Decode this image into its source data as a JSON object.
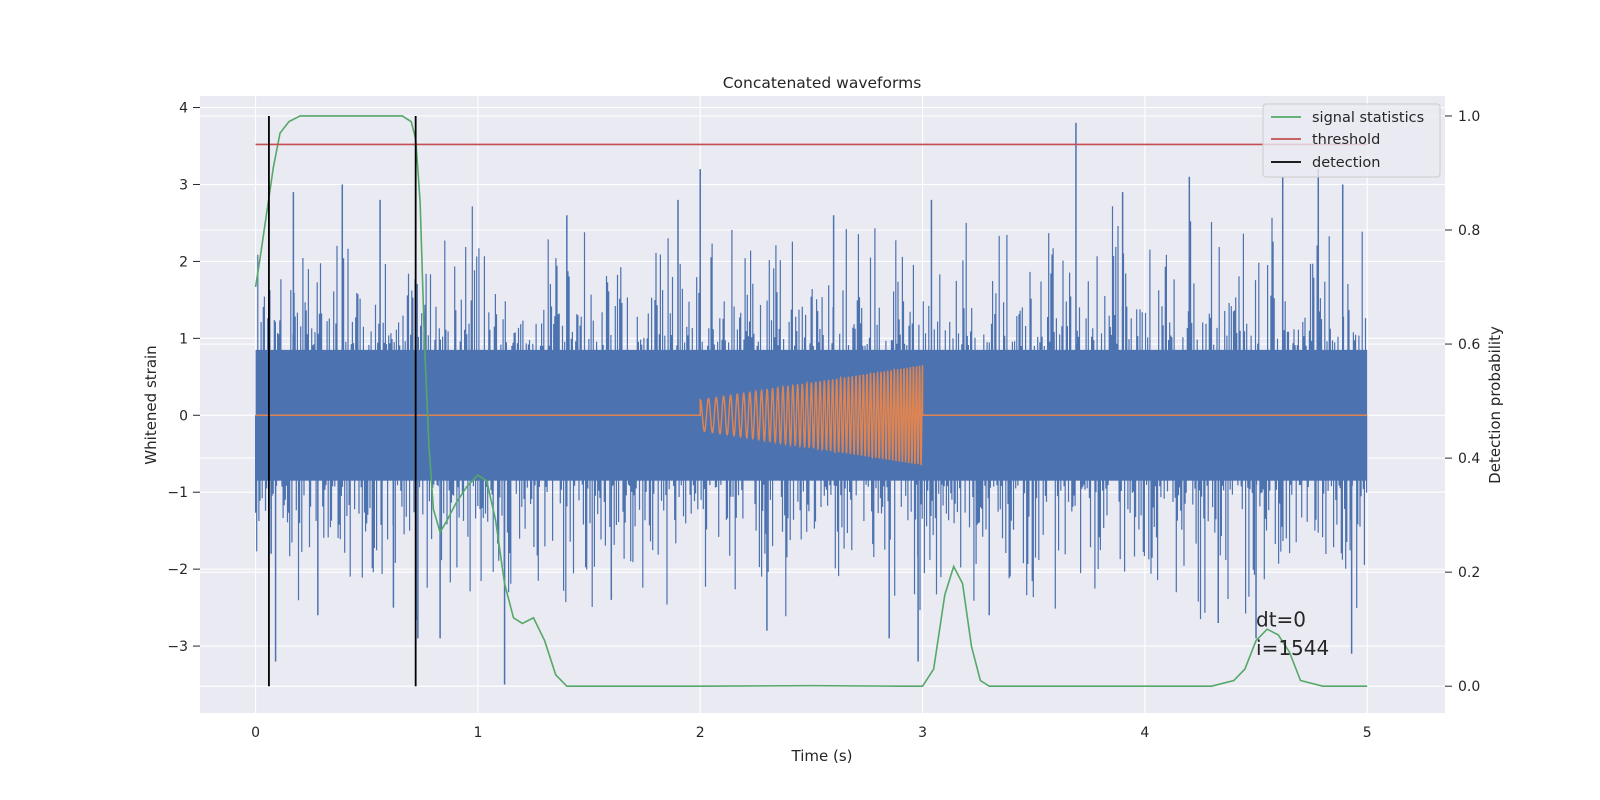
{
  "chart_data": {
    "type": "line",
    "title": "Concatenated waveforms",
    "xlabel": "Time (s)",
    "ylabel": "Whitened strain",
    "y2label": "Detection probability",
    "xlim": [
      -0.25,
      5.35
    ],
    "ylim": [
      -3.87,
      4.15
    ],
    "y2lim": [
      -0.047,
      1.035
    ],
    "xticks": [
      0,
      1,
      2,
      3,
      4,
      5
    ],
    "yticks": [
      -3,
      -2,
      -1,
      0,
      1,
      2,
      3,
      4
    ],
    "y2ticks": [
      0.0,
      0.2,
      0.4,
      0.6,
      0.8,
      1.0
    ],
    "xtick_labels": [
      "0",
      "1",
      "2",
      "3",
      "4",
      "5"
    ],
    "ytick_labels": [
      "−3",
      "−2",
      "−1",
      "0",
      "1",
      "2",
      "3",
      "4"
    ],
    "y2tick_labels": [
      "0.0",
      "0.2",
      "0.4",
      "0.6",
      "0.8",
      "1.0"
    ],
    "grid": true,
    "legend_position": "top-right",
    "background": "#EAEAF2",
    "series": [
      {
        "name": "",
        "axis": "left",
        "color": "#4C72B0",
        "kind": "noise",
        "x_range": [
          0,
          5
        ],
        "band": 0.85,
        "spike_peaks": [
          {
            "x": 0.06,
            "y": 1.1
          },
          {
            "x": 0.07,
            "y": -1.8
          },
          {
            "x": 0.09,
            "y": -3.2
          },
          {
            "x": 0.17,
            "y": 2.9
          },
          {
            "x": 0.28,
            "y": -2.6
          },
          {
            "x": 0.39,
            "y": 3.0
          },
          {
            "x": 0.56,
            "y": 2.8
          },
          {
            "x": 0.62,
            "y": -2.5
          },
          {
            "x": 0.73,
            "y": -2.9
          },
          {
            "x": 0.83,
            "y": -2.9
          },
          {
            "x": 1.12,
            "y": -3.5
          },
          {
            "x": 1.4,
            "y": 2.6
          },
          {
            "x": 1.6,
            "y": -2.4
          },
          {
            "x": 1.9,
            "y": 2.8
          },
          {
            "x": 2.0,
            "y": 3.2
          },
          {
            "x": 2.3,
            "y": -2.8
          },
          {
            "x": 2.6,
            "y": 2.6
          },
          {
            "x": 2.85,
            "y": -2.9
          },
          {
            "x": 2.98,
            "y": -3.2
          },
          {
            "x": 3.04,
            "y": 2.8
          },
          {
            "x": 3.3,
            "y": -2.6
          },
          {
            "x": 3.69,
            "y": 3.8
          },
          {
            "x": 3.9,
            "y": 2.9
          },
          {
            "x": 4.2,
            "y": 3.1
          },
          {
            "x": 4.33,
            "y": -2.7
          },
          {
            "x": 4.5,
            "y": -2.9
          },
          {
            "x": 4.62,
            "y": 3.1
          },
          {
            "x": 4.78,
            "y": 3.2
          },
          {
            "x": 4.89,
            "y": 3.0
          },
          {
            "x": 4.93,
            "y": -3.1
          }
        ]
      },
      {
        "name": "",
        "axis": "left",
        "color": "#DD8452",
        "kind": "chirp",
        "x_range": [
          0,
          5
        ],
        "chirp_x_range": [
          2.0,
          3.0
        ],
        "chirp_amplitude_start": 0.2,
        "chirp_amplitude_end": 0.65
      },
      {
        "name": "signal statistics",
        "axis": "right",
        "color": "#55A868",
        "x": [
          0,
          0.02,
          0.05,
          0.08,
          0.11,
          0.15,
          0.2,
          0.3,
          0.4,
          0.5,
          0.6,
          0.66,
          0.7,
          0.72,
          0.74,
          0.76,
          0.78,
          0.8,
          0.83,
          0.86,
          0.9,
          0.95,
          1.0,
          1.04,
          1.08,
          1.12,
          1.16,
          1.2,
          1.25,
          1.3,
          1.35,
          1.4,
          1.5,
          2.0,
          2.5,
          2.9,
          3.0,
          3.05,
          3.1,
          3.14,
          3.18,
          3.22,
          3.26,
          3.3,
          3.5,
          4.0,
          4.3,
          4.4,
          4.45,
          4.5,
          4.55,
          4.6,
          4.65,
          4.7,
          4.8,
          4.9,
          5.0
        ],
        "y": [
          0.7,
          0.75,
          0.83,
          0.91,
          0.97,
          0.99,
          1.0,
          1.0,
          1.0,
          1.0,
          1.0,
          1.0,
          0.99,
          0.96,
          0.85,
          0.6,
          0.42,
          0.31,
          0.27,
          0.29,
          0.32,
          0.35,
          0.37,
          0.36,
          0.29,
          0.18,
          0.12,
          0.11,
          0.12,
          0.08,
          0.02,
          0.0,
          0.0,
          0.0,
          0.001,
          0.0,
          0.0,
          0.03,
          0.16,
          0.21,
          0.18,
          0.07,
          0.01,
          0.0,
          0.0,
          0.0,
          0.0,
          0.01,
          0.03,
          0.08,
          0.1,
          0.09,
          0.06,
          0.01,
          0.0,
          0.0,
          0.0
        ]
      },
      {
        "name": "threshold",
        "axis": "right",
        "color": "#C44E52",
        "x": [
          0,
          5
        ],
        "y": [
          0.95,
          0.95
        ]
      },
      {
        "name": "detection",
        "axis": "right",
        "color": "#000000",
        "kind": "vlines",
        "x": [
          0.06,
          0.72
        ],
        "y_range": [
          0.0,
          1.0
        ]
      }
    ],
    "annotations": [
      {
        "text": "dt=0",
        "x": 4.5,
        "y2": 0.105
      },
      {
        "text": "i=1544",
        "x": 4.5,
        "y2": 0.055
      }
    ]
  }
}
